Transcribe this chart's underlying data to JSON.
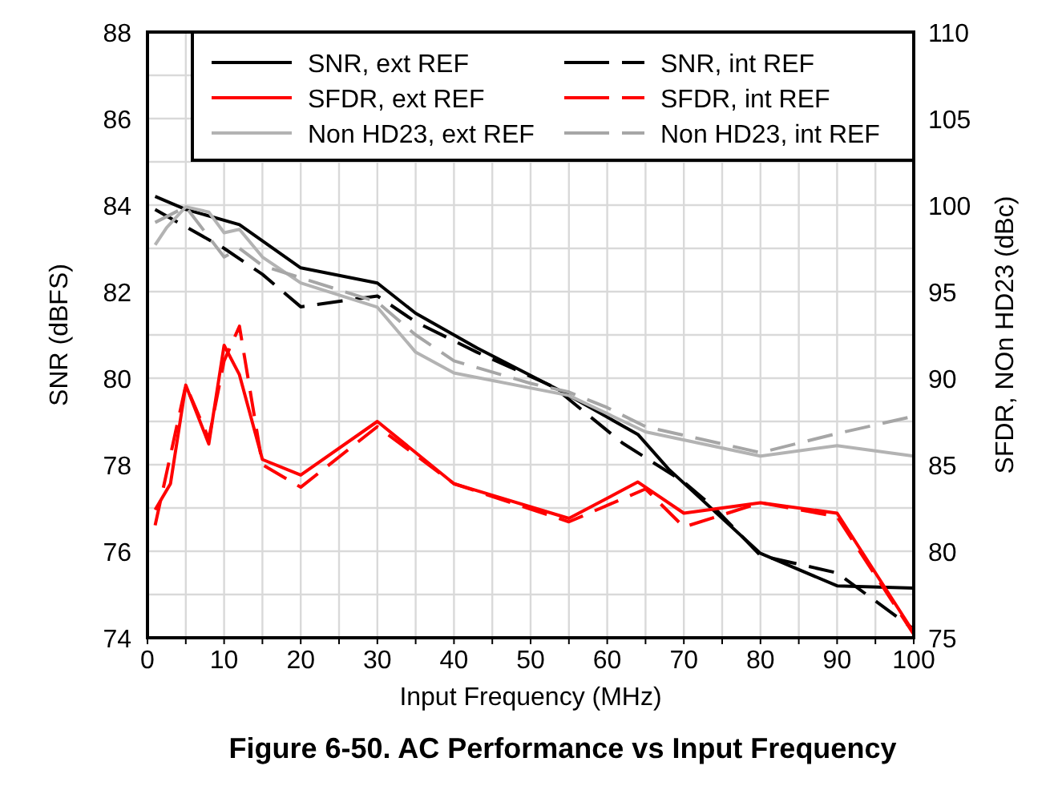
{
  "chart_data": {
    "type": "line",
    "title": "Figure 6-50. AC Performance vs Input Frequency",
    "xlabel": "Input Frequency (MHz)",
    "ylabel": "SNR (dBFS)",
    "y2label": "SFDR, NOn HD23 (dBc)",
    "xlim": [
      0,
      100
    ],
    "xticks": [
      0,
      {
        "value": 5,
        "label": null
      },
      10,
      {
        "value": 15,
        "label": null
      },
      20,
      {
        "value": 25,
        "label": null
      },
      30,
      {
        "value": 35,
        "label": null
      },
      40,
      {
        "value": 45,
        "label": null
      },
      50,
      {
        "value": 55,
        "label": null
      },
      60,
      {
        "value": 65,
        "label": null
      },
      70,
      {
        "value": 75,
        "label": null
      },
      80,
      {
        "value": 85,
        "label": null
      },
      90,
      {
        "value": 95,
        "label": null
      },
      100
    ],
    "ylim": [
      74,
      88
    ],
    "yticks": [
      74,
      {
        "value": 75,
        "label": null
      },
      76,
      {
        "value": 77,
        "label": null
      },
      78,
      {
        "value": 79,
        "label": null
      },
      80,
      {
        "value": 81,
        "label": null
      },
      82,
      {
        "value": 83,
        "label": null
      },
      84,
      {
        "value": 85,
        "label": null
      },
      86,
      {
        "value": 87,
        "label": null
      },
      88
    ],
    "y2lim": [
      75,
      110
    ],
    "y2ticks": [
      75,
      80,
      85,
      90,
      95,
      100,
      105,
      110
    ],
    "grid": true,
    "legend": "top right",
    "series": [
      {
        "name": "SNR, ext REF",
        "color": "#000000",
        "line_style": "solid",
        "x": [
          1,
          5,
          12,
          20,
          30,
          35,
          43,
          54,
          64,
          68,
          80,
          90,
          100
        ],
        "values": [
          84.2,
          83.9,
          83.55,
          82.55,
          82.2,
          81.5,
          80.7,
          79.7,
          78.7,
          77.9,
          75.95,
          75.2,
          75.15
        ]
      },
      {
        "name": "SNR, int REF",
        "color": "#000000",
        "line_style": "dashed",
        "x": [
          1,
          5,
          10,
          15,
          20,
          30,
          35,
          43,
          53,
          62,
          70,
          74,
          80,
          85,
          90,
          100
        ],
        "values": [
          83.9,
          83.5,
          83.0,
          82.4,
          81.65,
          81.9,
          81.3,
          80.6,
          79.8,
          78.5,
          77.6,
          77.0,
          75.9,
          75.7,
          75.5,
          74.2
        ]
      },
      {
        "name": "SFDR, ext REF",
        "color": "#ff0000",
        "line_style": "solid",
        "axis": "y2",
        "x": [
          1,
          3,
          5,
          8,
          10,
          12,
          15,
          20,
          30,
          40,
          43,
          55,
          64,
          70,
          80,
          90,
          100
        ],
        "values": [
          82.4,
          83.9,
          89.6,
          86.2,
          91.9,
          90.2,
          85.3,
          84.4,
          87.5,
          83.9,
          83.5,
          81.9,
          84.0,
          82.2,
          82.8,
          82.2,
          75.3
        ]
      },
      {
        "name": "SFDR, int REF",
        "color": "#ff0000",
        "line_style": "dashed",
        "axis": "y2",
        "x": [
          1,
          5,
          8,
          10,
          12,
          15,
          20,
          30,
          40,
          55,
          65,
          70,
          80,
          90,
          100
        ],
        "values": [
          81.5,
          89.6,
          86.5,
          91.0,
          93.0,
          85.0,
          83.7,
          87.2,
          83.9,
          81.7,
          83.6,
          81.4,
          82.8,
          82.0,
          75.2
        ]
      },
      {
        "name": "Non HD23, ext REF",
        "color": "#b3b3b3",
        "line_style": "solid",
        "axis": "y2",
        "x": [
          1,
          2.5,
          5,
          8,
          10,
          12,
          15,
          20,
          30,
          35,
          40,
          55,
          65,
          80,
          90,
          100
        ],
        "values": [
          97.7,
          98.7,
          99.9,
          99.6,
          98.4,
          98.6,
          97.0,
          95.5,
          94.1,
          91.5,
          90.3,
          89.0,
          86.9,
          85.5,
          86.1,
          85.5
        ]
      },
      {
        "name": "Non HD23, int REF",
        "color": "#a6a6a6",
        "line_style": "dashed",
        "axis": "y2",
        "x": [
          1,
          5,
          10,
          12,
          15,
          20,
          30,
          35,
          40,
          50,
          55,
          60,
          65,
          75,
          80,
          90,
          100
        ],
        "values": [
          99.0,
          99.9,
          97.0,
          97.5,
          96.5,
          95.8,
          94.4,
          92.5,
          91.0,
          89.7,
          89.2,
          88.3,
          87.2,
          86.2,
          85.7,
          86.8,
          87.8
        ]
      }
    ]
  }
}
